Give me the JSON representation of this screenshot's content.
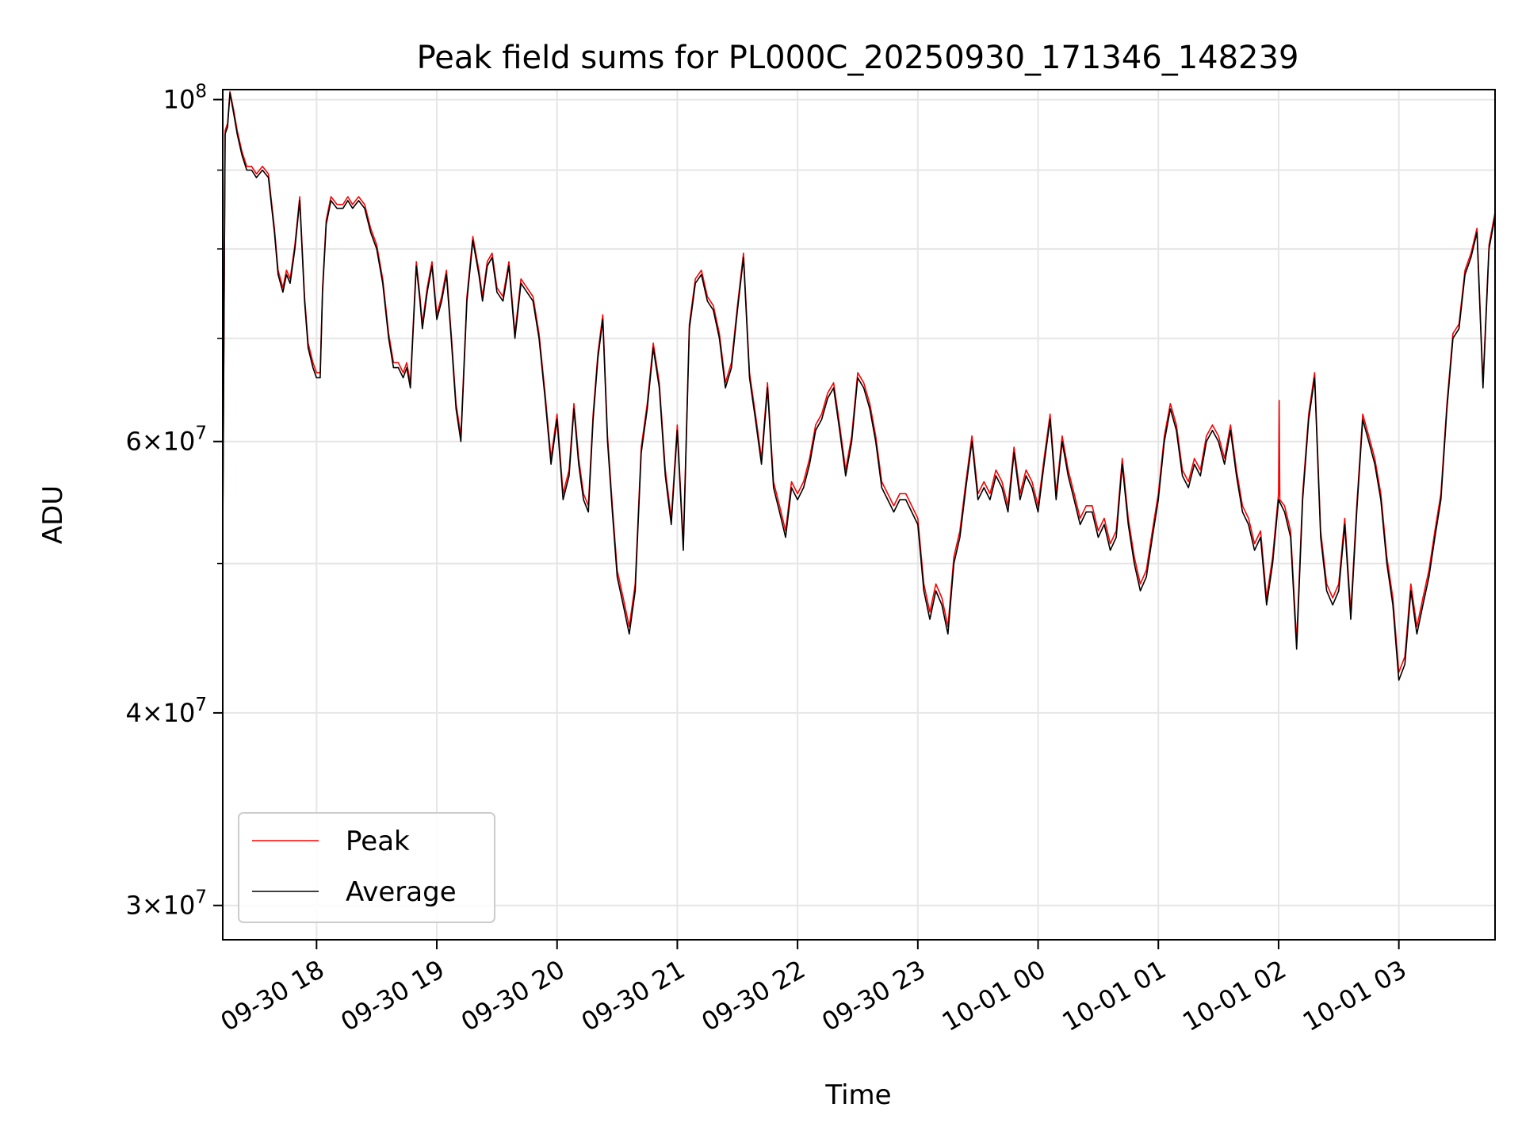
{
  "chart_data": {
    "type": "line",
    "title": "Peak field sums for PL000C_20250930_171346_148239",
    "xlabel": "Time",
    "ylabel": "ADU",
    "yscale": "log",
    "ylim": [
      28500000,
      101500000
    ],
    "xlim": [
      17.22,
      27.8
    ],
    "grid": true,
    "legend_position": "lower-left",
    "x_units": "hours since 2025-09-30 00:00",
    "x_ticks": [
      {
        "value": 18,
        "label": "09-30 18"
      },
      {
        "value": 19,
        "label": "09-30 19"
      },
      {
        "value": 20,
        "label": "09-30 20"
      },
      {
        "value": 21,
        "label": "09-30 21"
      },
      {
        "value": 22,
        "label": "09-30 22"
      },
      {
        "value": 23,
        "label": "09-30 23"
      },
      {
        "value": 24,
        "label": "10-01 00"
      },
      {
        "value": 25,
        "label": "10-01 01"
      },
      {
        "value": 26,
        "label": "10-01 02"
      },
      {
        "value": 27,
        "label": "10-01 03"
      }
    ],
    "y_ticks_major": [
      {
        "value": 100000000,
        "base": "10",
        "exp": "8"
      },
      {
        "value": 60000000,
        "mant": "6",
        "base": "10",
        "exp": "7"
      },
      {
        "value": 40000000,
        "mant": "4",
        "base": "10",
        "exp": "7"
      },
      {
        "value": 30000000,
        "mant": "3",
        "base": "10",
        "exp": "7"
      }
    ],
    "y_grid_minor": [
      90000000,
      80000000,
      70000000,
      50000000
    ],
    "series": [
      {
        "name": "Average",
        "color": "#000000",
        "x": [
          17.22,
          17.24,
          17.26,
          17.28,
          17.31,
          17.34,
          17.38,
          17.42,
          17.46,
          17.5,
          17.55,
          17.6,
          17.65,
          17.68,
          17.72,
          17.75,
          17.78,
          17.82,
          17.86,
          17.9,
          17.93,
          17.97,
          18.0,
          18.03,
          18.05,
          18.08,
          18.12,
          18.17,
          18.22,
          18.26,
          18.3,
          18.35,
          18.4,
          18.45,
          18.5,
          18.55,
          18.6,
          18.64,
          18.68,
          18.72,
          18.75,
          18.78,
          18.8,
          18.83,
          18.86,
          18.88,
          18.92,
          18.96,
          19.0,
          19.04,
          19.08,
          19.12,
          19.16,
          19.2,
          19.25,
          19.3,
          19.35,
          19.38,
          19.42,
          19.46,
          19.5,
          19.55,
          19.6,
          19.65,
          19.7,
          19.75,
          19.8,
          19.85,
          19.9,
          19.95,
          20.0,
          20.05,
          20.1,
          20.14,
          20.18,
          20.22,
          20.26,
          20.3,
          20.34,
          20.38,
          20.42,
          20.46,
          20.5,
          20.55,
          20.6,
          20.65,
          20.7,
          20.75,
          20.8,
          20.85,
          20.9,
          20.95,
          21.0,
          21.05,
          21.1,
          21.15,
          21.2,
          21.25,
          21.3,
          21.35,
          21.4,
          21.45,
          21.5,
          21.55,
          21.6,
          21.65,
          21.7,
          21.75,
          21.8,
          21.85,
          21.9,
          21.95,
          22.0,
          22.05,
          22.1,
          22.15,
          22.2,
          22.25,
          22.3,
          22.35,
          22.4,
          22.45,
          22.5,
          22.55,
          22.6,
          22.65,
          22.7,
          22.75,
          22.8,
          22.85,
          22.9,
          22.95,
          23.0,
          23.05,
          23.1,
          23.15,
          23.2,
          23.25,
          23.3,
          23.35,
          23.4,
          23.45,
          23.5,
          23.55,
          23.6,
          23.65,
          23.7,
          23.75,
          23.8,
          23.85,
          23.9,
          23.95,
          24.0,
          24.05,
          24.1,
          24.15,
          24.2,
          24.25,
          24.3,
          24.35,
          24.4,
          24.45,
          24.5,
          24.55,
          24.6,
          24.65,
          24.7,
          24.75,
          24.8,
          24.85,
          24.9,
          24.95,
          25.0,
          25.05,
          25.1,
          25.15,
          25.2,
          25.25,
          25.3,
          25.35,
          25.4,
          25.45,
          25.5,
          25.55,
          25.6,
          25.65,
          25.7,
          25.75,
          25.8,
          25.85,
          25.9,
          25.95,
          26.0,
          26.05,
          26.1,
          26.15,
          26.2,
          26.25,
          26.3,
          26.35,
          26.4,
          26.45,
          26.5,
          26.55,
          26.6,
          26.65,
          26.7,
          26.75,
          26.8,
          26.85,
          26.9,
          26.95,
          27.0,
          27.05,
          27.1,
          27.15,
          27.2,
          27.25,
          27.3,
          27.35,
          27.4,
          27.45,
          27.5,
          27.55,
          27.6,
          27.65,
          27.7,
          27.75,
          27.8
        ],
        "values": [
          52000000,
          95000000,
          96000000,
          101000000,
          98000000,
          95000000,
          92000000,
          90000000,
          90000000,
          89000000,
          90000000,
          89000000,
          82000000,
          77000000,
          75000000,
          77000000,
          76000000,
          80000000,
          86000000,
          74000000,
          69000000,
          67000000,
          66000000,
          66000000,
          75000000,
          83000000,
          86000000,
          85000000,
          85000000,
          86000000,
          85000000,
          86000000,
          85000000,
          82000000,
          80000000,
          76000000,
          70000000,
          67000000,
          67000000,
          66000000,
          67000000,
          65000000,
          70000000,
          78000000,
          74000000,
          71000000,
          75000000,
          78000000,
          72000000,
          74000000,
          77000000,
          70000000,
          63000000,
          60000000,
          74000000,
          81000000,
          77000000,
          74000000,
          78000000,
          79000000,
          75000000,
          74000000,
          78000000,
          70000000,
          76000000,
          75000000,
          74000000,
          70000000,
          64000000,
          58000000,
          62000000,
          55000000,
          57000000,
          63000000,
          58000000,
          55000000,
          54000000,
          62000000,
          68000000,
          72000000,
          60000000,
          54000000,
          49000000,
          47000000,
          45000000,
          48000000,
          59000000,
          63000000,
          69000000,
          65000000,
          57000000,
          53000000,
          61000000,
          51000000,
          71000000,
          76000000,
          77000000,
          74000000,
          73000000,
          70000000,
          65000000,
          67000000,
          73000000,
          79000000,
          66000000,
          62000000,
          58000000,
          65000000,
          56000000,
          54000000,
          52000000,
          56000000,
          55000000,
          56000000,
          58000000,
          61000000,
          62000000,
          64000000,
          65000000,
          61000000,
          57000000,
          60000000,
          66000000,
          65000000,
          63000000,
          60000000,
          56000000,
          55000000,
          54000000,
          55000000,
          55000000,
          54000000,
          53000000,
          48000000,
          46000000,
          48000000,
          47000000,
          45000000,
          50000000,
          52000000,
          56000000,
          60000000,
          55000000,
          56000000,
          55000000,
          57000000,
          56000000,
          54000000,
          59000000,
          55000000,
          57000000,
          56000000,
          54000000,
          58000000,
          62000000,
          55000000,
          60000000,
          57000000,
          55000000,
          53000000,
          54000000,
          54000000,
          52000000,
          53000000,
          51000000,
          52000000,
          58000000,
          53000000,
          50000000,
          48000000,
          49000000,
          52000000,
          55000000,
          60000000,
          63000000,
          61000000,
          57000000,
          56000000,
          58000000,
          57000000,
          60000000,
          61000000,
          60000000,
          58000000,
          61000000,
          57000000,
          54000000,
          53000000,
          51000000,
          52000000,
          47000000,
          50000000,
          55000000,
          54000000,
          52000000,
          44000000,
          55000000,
          62000000,
          66000000,
          52000000,
          48000000,
          47000000,
          48000000,
          53000000,
          46000000,
          54000000,
          62000000,
          60000000,
          58000000,
          55000000,
          50000000,
          47000000,
          42000000,
          43000000,
          48000000,
          45000000,
          47000000,
          49000000,
          52000000,
          55000000,
          63000000,
          70000000,
          71000000,
          77000000,
          79000000,
          82000000,
          65000000,
          80000000,
          84000000
        ]
      },
      {
        "name": "Peak",
        "color": "#ff0000",
        "x": [
          17.22,
          17.24,
          17.26,
          17.28,
          17.31,
          17.34,
          17.38,
          17.42,
          17.46,
          17.5,
          17.55,
          17.6,
          17.65,
          17.68,
          17.72,
          17.75,
          17.78,
          17.82,
          17.86,
          17.9,
          17.93,
          17.97,
          18.0,
          18.03,
          18.05,
          18.08,
          18.12,
          18.17,
          18.22,
          18.26,
          18.3,
          18.35,
          18.4,
          18.45,
          18.5,
          18.55,
          18.6,
          18.64,
          18.68,
          18.72,
          18.75,
          18.78,
          18.8,
          18.83,
          18.86,
          18.88,
          18.92,
          18.96,
          19.0,
          19.04,
          19.08,
          19.12,
          19.16,
          19.2,
          19.25,
          19.3,
          19.35,
          19.38,
          19.42,
          19.46,
          19.5,
          19.55,
          19.6,
          19.65,
          19.7,
          19.75,
          19.8,
          19.85,
          19.9,
          19.95,
          20.0,
          20.05,
          20.1,
          20.14,
          20.18,
          20.22,
          20.26,
          20.3,
          20.34,
          20.38,
          20.42,
          20.46,
          20.5,
          20.55,
          20.6,
          20.65,
          20.7,
          20.75,
          20.8,
          20.85,
          20.9,
          20.95,
          21.0,
          21.05,
          21.1,
          21.15,
          21.2,
          21.25,
          21.3,
          21.35,
          21.4,
          21.45,
          21.5,
          21.55,
          21.6,
          21.65,
          21.7,
          21.75,
          21.8,
          21.85,
          21.9,
          21.95,
          22.0,
          22.05,
          22.1,
          22.15,
          22.2,
          22.25,
          22.3,
          22.35,
          22.4,
          22.45,
          22.5,
          22.55,
          22.6,
          22.65,
          22.7,
          22.75,
          22.8,
          22.85,
          22.9,
          22.95,
          23.0,
          23.05,
          23.1,
          23.15,
          23.2,
          23.25,
          23.3,
          23.35,
          23.4,
          23.45,
          23.5,
          23.55,
          23.6,
          23.65,
          23.7,
          23.75,
          23.8,
          23.85,
          23.9,
          23.95,
          24.0,
          24.05,
          24.1,
          24.15,
          24.2,
          24.25,
          24.3,
          24.35,
          24.4,
          24.45,
          24.5,
          24.55,
          24.6,
          24.65,
          24.7,
          24.75,
          24.8,
          24.85,
          24.9,
          24.95,
          25.0,
          25.05,
          25.1,
          25.15,
          25.2,
          25.25,
          25.3,
          25.35,
          25.4,
          25.45,
          25.5,
          25.55,
          25.6,
          25.65,
          25.7,
          25.75,
          25.8,
          25.85,
          25.9,
          25.95,
          26.0,
          26.005,
          26.01,
          26.05,
          26.1,
          26.15,
          26.2,
          26.25,
          26.3,
          26.35,
          26.4,
          26.45,
          26.5,
          26.55,
          26.6,
          26.65,
          26.7,
          26.75,
          26.8,
          26.85,
          26.9,
          26.95,
          27.0,
          27.05,
          27.1,
          27.15,
          27.2,
          27.25,
          27.3,
          27.35,
          27.4,
          27.45,
          27.5,
          27.55,
          27.6,
          27.65,
          27.7,
          27.75,
          27.8
        ],
        "values": [
          52500000,
          95500000,
          96500000,
          101200000,
          98500000,
          95500000,
          92500000,
          90500000,
          90500000,
          89500000,
          90500000,
          89500000,
          82500000,
          77500000,
          75500000,
          77500000,
          76500000,
          80500000,
          86500000,
          74500000,
          69500000,
          67500000,
          66500000,
          66500000,
          75500000,
          83500000,
          86500000,
          85500000,
          85500000,
          86500000,
          85500000,
          86500000,
          85500000,
          82500000,
          80500000,
          76500000,
          70500000,
          67500000,
          67500000,
          66500000,
          67500000,
          65500000,
          70500000,
          78500000,
          74500000,
          71500000,
          75500000,
          78500000,
          72500000,
          74500000,
          77500000,
          70500000,
          63500000,
          60500000,
          74500000,
          81500000,
          77500000,
          74500000,
          78500000,
          79500000,
          75500000,
          74500000,
          78500000,
          70500000,
          76500000,
          75500000,
          74500000,
          70500000,
          64500000,
          58500000,
          62500000,
          55500000,
          57500000,
          63500000,
          58500000,
          55500000,
          54500000,
          62500000,
          68500000,
          72500000,
          60500000,
          54500000,
          49500000,
          47500000,
          45500000,
          48500000,
          59500000,
          63500000,
          69500000,
          65500000,
          57500000,
          53500000,
          61500000,
          51500000,
          71500000,
          76500000,
          77500000,
          74500000,
          73500000,
          70500000,
          65500000,
          67500000,
          73500000,
          79500000,
          66500000,
          62500000,
          58500000,
          65500000,
          56500000,
          54500000,
          52500000,
          56500000,
          55500000,
          56500000,
          58500000,
          61500000,
          62500000,
          64500000,
          65500000,
          61500000,
          57500000,
          60500000,
          66500000,
          65500000,
          63500000,
          60500000,
          56500000,
          55500000,
          54500000,
          55500000,
          55500000,
          54500000,
          53500000,
          48500000,
          46500000,
          48500000,
          47500000,
          45500000,
          50500000,
          52500000,
          56500000,
          60500000,
          55500000,
          56500000,
          55500000,
          57500000,
          56500000,
          54500000,
          59500000,
          55500000,
          57500000,
          56500000,
          54500000,
          58500000,
          62500000,
          55500000,
          60500000,
          57500000,
          55500000,
          53500000,
          54500000,
          54500000,
          52500000,
          53500000,
          51500000,
          52500000,
          58500000,
          53500000,
          50500000,
          48500000,
          49500000,
          52500000,
          55500000,
          60500000,
          63500000,
          61500000,
          57500000,
          56500000,
          58500000,
          57500000,
          60500000,
          61500000,
          60500000,
          58500000,
          61500000,
          57500000,
          54500000,
          53500000,
          51500000,
          52500000,
          47500000,
          50500000,
          55500000,
          63800000,
          55000000,
          54500000,
          52500000,
          44500000,
          55500000,
          62500000,
          66500000,
          52500000,
          48500000,
          47500000,
          48500000,
          53500000,
          46500000,
          54500000,
          62500000,
          60500000,
          58500000,
          55500000,
          50500000,
          47500000,
          42500000,
          43500000,
          48500000,
          45500000,
          47500000,
          49500000,
          52500000,
          55500000,
          63500000,
          70500000,
          71500000,
          77500000,
          79500000,
          82500000,
          65500000,
          80500000,
          84500000
        ]
      }
    ]
  }
}
